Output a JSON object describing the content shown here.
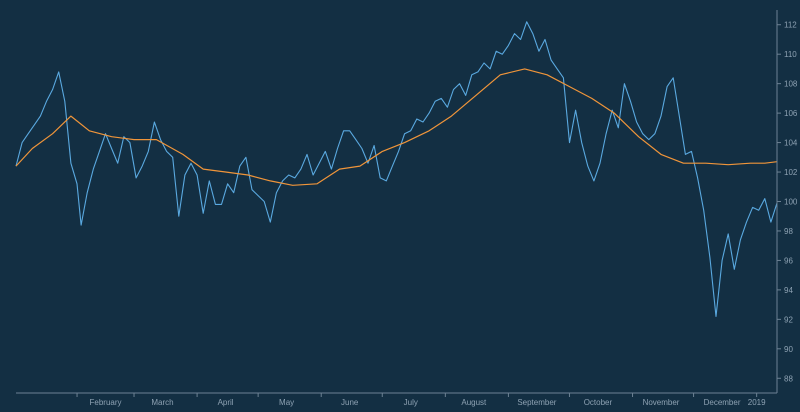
{
  "chart_data": {
    "type": "line",
    "title": "",
    "xlabel": "",
    "ylabel": "",
    "x_tick_labels": [
      "February",
      "March",
      "April",
      "May",
      "June",
      "July",
      "August",
      "September",
      "October",
      "November",
      "December",
      "2019"
    ],
    "y_ticks": [
      88,
      90,
      92,
      94,
      96,
      98,
      100,
      102,
      104,
      106,
      108,
      110,
      112
    ],
    "ylim": [
      87,
      113
    ],
    "xlim": [
      "2018-01-02",
      "2019-01-11"
    ],
    "grid": false,
    "legend": "none",
    "series": [
      {
        "color": "#5aa9e0",
        "x": [
          "2018-01-02",
          "2018-01-05",
          "2018-01-08",
          "2018-01-11",
          "2018-01-14",
          "2018-01-17",
          "2018-01-20",
          "2018-01-23",
          "2018-01-26",
          "2018-01-29",
          "2018-02-01",
          "2018-02-03",
          "2018-02-06",
          "2018-02-09",
          "2018-02-12",
          "2018-02-15",
          "2018-02-18",
          "2018-02-21",
          "2018-02-24",
          "2018-02-27",
          "2018-03-02",
          "2018-03-05",
          "2018-03-08",
          "2018-03-11",
          "2018-03-14",
          "2018-03-17",
          "2018-03-20",
          "2018-03-23",
          "2018-03-26",
          "2018-03-29",
          "2018-04-01",
          "2018-04-04",
          "2018-04-07",
          "2018-04-10",
          "2018-04-13",
          "2018-04-16",
          "2018-04-19",
          "2018-04-22",
          "2018-04-25",
          "2018-04-28",
          "2018-05-01",
          "2018-05-04",
          "2018-05-07",
          "2018-05-10",
          "2018-05-13",
          "2018-05-16",
          "2018-05-19",
          "2018-05-22",
          "2018-05-25",
          "2018-05-28",
          "2018-05-31",
          "2018-06-03",
          "2018-06-06",
          "2018-06-09",
          "2018-06-12",
          "2018-06-15",
          "2018-06-18",
          "2018-06-21",
          "2018-06-24",
          "2018-06-27",
          "2018-06-30",
          "2018-07-03",
          "2018-07-06",
          "2018-07-09",
          "2018-07-12",
          "2018-07-15",
          "2018-07-18",
          "2018-07-21",
          "2018-07-24",
          "2018-07-27",
          "2018-07-30",
          "2018-08-02",
          "2018-08-05",
          "2018-08-08",
          "2018-08-11",
          "2018-08-14",
          "2018-08-17",
          "2018-08-20",
          "2018-08-23",
          "2018-08-26",
          "2018-08-29",
          "2018-09-01",
          "2018-09-04",
          "2018-09-07",
          "2018-09-10",
          "2018-09-13",
          "2018-09-16",
          "2018-09-19",
          "2018-09-22",
          "2018-09-25",
          "2018-09-28",
          "2018-10-01",
          "2018-10-04",
          "2018-10-07",
          "2018-10-10",
          "2018-10-13",
          "2018-10-16",
          "2018-10-19",
          "2018-10-22",
          "2018-10-25",
          "2018-10-28",
          "2018-10-31",
          "2018-11-03",
          "2018-11-06",
          "2018-11-09",
          "2018-11-12",
          "2018-11-15",
          "2018-11-18",
          "2018-11-21",
          "2018-11-24",
          "2018-11-27",
          "2018-11-30",
          "2018-12-03",
          "2018-12-06",
          "2018-12-09",
          "2018-12-12",
          "2018-12-15",
          "2018-12-18",
          "2018-12-21",
          "2018-12-24",
          "2018-12-27",
          "2018-12-30",
          "2019-01-02",
          "2019-01-05",
          "2019-01-08",
          "2019-01-11"
        ],
        "y": [
          102.4,
          104.0,
          104.6,
          105.2,
          105.8,
          106.8,
          107.6,
          108.8,
          106.8,
          102.6,
          101.2,
          98.4,
          100.6,
          102.2,
          103.4,
          104.6,
          103.6,
          102.6,
          104.4,
          104.0,
          101.6,
          102.4,
          103.4,
          105.4,
          104.2,
          103.4,
          103.0,
          99.0,
          101.8,
          102.6,
          101.8,
          99.2,
          101.4,
          99.8,
          99.8,
          101.2,
          100.6,
          102.4,
          103.0,
          100.8,
          100.4,
          100.0,
          98.6,
          100.6,
          101.4,
          101.8,
          101.6,
          102.2,
          103.2,
          101.8,
          102.6,
          103.4,
          102.2,
          103.6,
          104.8,
          104.8,
          104.2,
          103.6,
          102.6,
          103.8,
          101.6,
          101.4,
          102.4,
          103.4,
          104.6,
          104.8,
          105.6,
          105.4,
          106.0,
          106.8,
          107.0,
          106.4,
          107.6,
          108.0,
          107.2,
          108.6,
          108.8,
          109.4,
          109.0,
          110.2,
          110.0,
          110.6,
          111.4,
          111.0,
          112.2,
          111.4,
          110.2,
          111.0,
          109.6,
          109.0,
          108.4,
          104.0,
          106.2,
          104.0,
          102.4,
          101.4,
          102.6,
          104.6,
          106.2,
          105.0,
          108.0,
          106.8,
          105.4,
          104.6,
          104.2,
          104.6,
          105.8,
          107.8,
          108.4,
          105.8,
          103.2,
          103.4,
          101.6,
          99.4,
          96.2,
          92.2,
          96.0,
          97.8,
          95.4,
          97.4,
          98.6,
          99.6,
          99.4,
          100.2,
          98.6,
          99.9
        ]
      },
      {
        "color": "#f0953a",
        "x": [
          "2018-01-02",
          "2018-01-10",
          "2018-01-20",
          "2018-01-29",
          "2018-02-07",
          "2018-02-18",
          "2018-03-01",
          "2018-03-12",
          "2018-03-25",
          "2018-04-04",
          "2018-04-15",
          "2018-04-26",
          "2018-05-07",
          "2018-05-18",
          "2018-05-30",
          "2018-06-10",
          "2018-06-20",
          "2018-07-01",
          "2018-07-12",
          "2018-07-24",
          "2018-08-04",
          "2018-08-16",
          "2018-08-28",
          "2018-09-09",
          "2018-09-20",
          "2018-10-01",
          "2018-10-12",
          "2018-10-23",
          "2018-11-04",
          "2018-11-15",
          "2018-11-26",
          "2018-12-07",
          "2018-12-18",
          "2018-12-29",
          "2019-01-05",
          "2019-01-11"
        ],
        "y": [
          102.4,
          103.6,
          104.6,
          105.8,
          104.8,
          104.4,
          104.2,
          104.2,
          103.2,
          102.2,
          102.0,
          101.8,
          101.4,
          101.1,
          101.2,
          102.2,
          102.4,
          103.4,
          104.0,
          104.8,
          105.8,
          107.2,
          108.6,
          109.0,
          108.6,
          107.8,
          107.0,
          106.0,
          104.4,
          103.2,
          102.6,
          102.6,
          102.5,
          102.6,
          102.6,
          102.7
        ]
      }
    ]
  }
}
